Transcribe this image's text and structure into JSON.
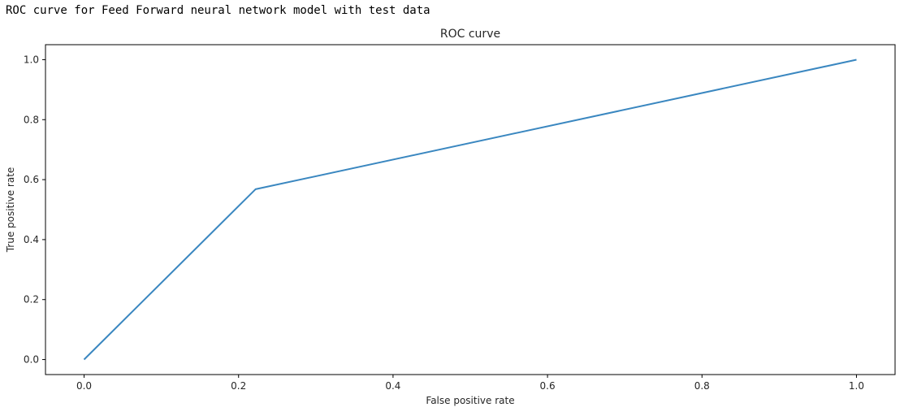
{
  "cell_output": {
    "text": "ROC curve for Feed Forward neural network model with test data"
  },
  "chart_data": {
    "type": "line",
    "title": "ROC curve",
    "xlabel": "False positive rate",
    "ylabel": "True positive rate",
    "xlim": [
      -0.05,
      1.05
    ],
    "ylim": [
      -0.05,
      1.05
    ],
    "xticks": [
      0.0,
      0.2,
      0.4,
      0.6,
      0.8,
      1.0
    ],
    "yticks": [
      0.0,
      0.2,
      0.4,
      0.6,
      0.8,
      1.0
    ],
    "xtick_labels": [
      "0.0",
      "0.2",
      "0.4",
      "0.6",
      "0.8",
      "1.0"
    ],
    "ytick_labels": [
      "0.0",
      "0.2",
      "0.4",
      "0.6",
      "0.8",
      "1.0"
    ],
    "grid": false,
    "series": [
      {
        "x": [
          0.0,
          0.222,
          1.0
        ],
        "y": [
          0.0,
          0.568,
          1.0
        ],
        "color": "#3a87c0"
      }
    ]
  }
}
